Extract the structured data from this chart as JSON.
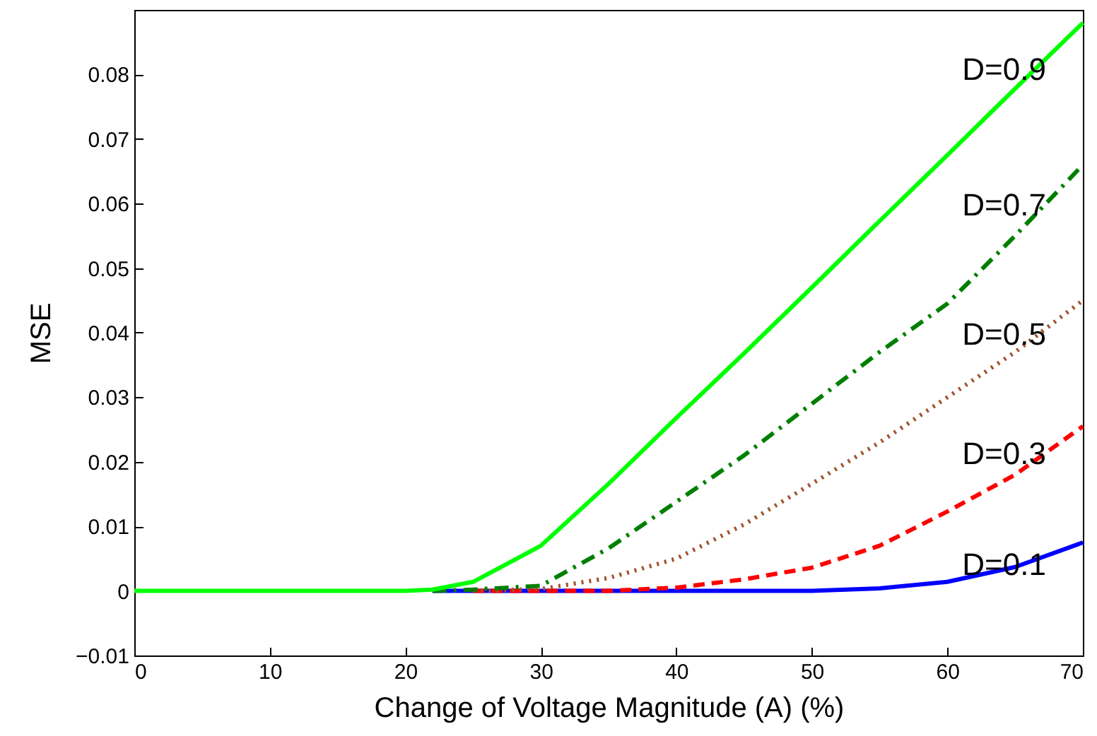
{
  "chart_data": {
    "type": "line",
    "xlabel": "Change of Voltage Magnitude (A) (%)",
    "ylabel": "MSE",
    "x": [
      0,
      5,
      10,
      15,
      20,
      22,
      25,
      30,
      35,
      40,
      45,
      50,
      55,
      60,
      65,
      70
    ],
    "xlim": [
      0,
      70
    ],
    "xticks": [
      0,
      10,
      20,
      30,
      40,
      50,
      60,
      70
    ],
    "ylim": [
      -0.01,
      0.09
    ],
    "yticks": [
      -0.01,
      0,
      0.01,
      0.02,
      0.03,
      0.04,
      0.05,
      0.06,
      0.07,
      0.08
    ],
    "grid": false,
    "marker": "none",
    "series": [
      {
        "name": "D=0.9",
        "color": "#00ff00",
        "line_style": "solid",
        "values": [
          0,
          0,
          0,
          0,
          0,
          0.0002,
          0.0014,
          0.007,
          0.0166,
          0.0268,
          0.0368,
          0.047,
          0.0573,
          0.0675,
          0.0778,
          0.088
        ]
      },
      {
        "name": "D=0.7",
        "color": "#007f00",
        "line_style": "dashdot",
        "values": [
          null,
          null,
          null,
          null,
          null,
          0,
          0.0002,
          0.0008,
          0.0066,
          0.0138,
          0.021,
          0.029,
          0.037,
          0.0445,
          0.055,
          0.066
        ]
      },
      {
        "name": "D=0.5",
        "color": "#a0522d",
        "line_style": "dotted",
        "values": [
          null,
          null,
          null,
          null,
          null,
          null,
          0,
          0.0003,
          0.002,
          0.005,
          0.0103,
          0.0166,
          0.023,
          0.03,
          0.037,
          0.045
        ]
      },
      {
        "name": "D=0.3",
        "color": "#ff0000",
        "line_style": "dashed",
        "values": [
          null,
          null,
          null,
          null,
          null,
          null,
          0,
          0,
          0,
          0.0005,
          0.0018,
          0.0036,
          0.007,
          0.0123,
          0.018,
          0.0255
        ]
      },
      {
        "name": "D=0.1",
        "color": "#0000ff",
        "line_style": "solid",
        "values": [
          null,
          null,
          null,
          null,
          null,
          0,
          0,
          0,
          0,
          0,
          0,
          0,
          0.0004,
          0.0014,
          0.0037,
          0.0075
        ]
      }
    ]
  }
}
